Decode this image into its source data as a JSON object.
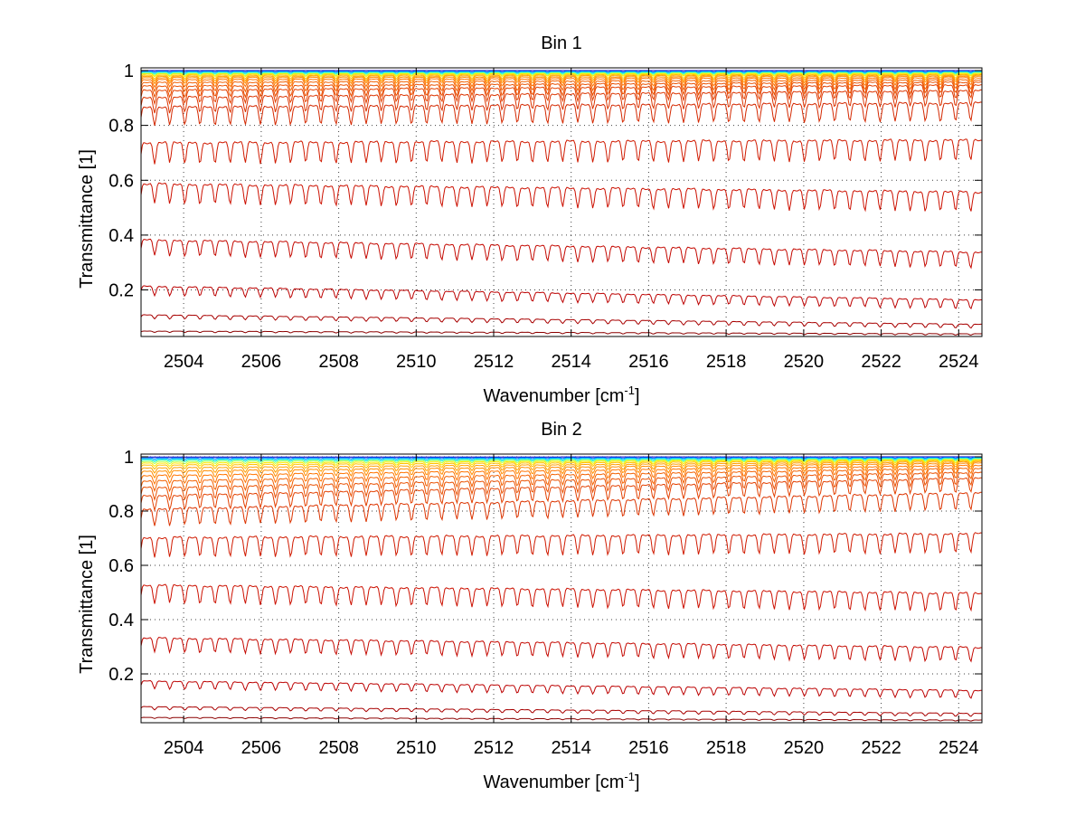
{
  "chart_data": [
    {
      "type": "line",
      "title": "Bin 1",
      "xlabel": "Wavenumber [cm",
      "xlabel_sup": "-1",
      "xlabel_end": "]",
      "ylabel": "Transmittance [1]",
      "xlim": [
        2502.9,
        2524.6
      ],
      "ylim": [
        0.03,
        1.01
      ],
      "xticks": [
        2504,
        2506,
        2508,
        2510,
        2512,
        2514,
        2516,
        2518,
        2520,
        2522,
        2524
      ],
      "yticks": [
        0.2,
        0.4,
        0.6,
        0.8,
        1
      ],
      "ytick_labels": [
        "0.2",
        "0.4",
        "0.6",
        "0.8",
        "1"
      ],
      "grid": true,
      "line_spacing_cm1": 0.39,
      "series": [
        {
          "baseline": [
            1.0,
            1.0
          ],
          "depth": 0.0,
          "color": "#0000c8"
        },
        {
          "baseline": [
            0.998,
            0.998
          ],
          "depth": 0.003,
          "color": "#0072ff"
        },
        {
          "baseline": [
            0.995,
            0.996
          ],
          "depth": 0.005,
          "color": "#00c8ff"
        },
        {
          "baseline": [
            0.993,
            0.994
          ],
          "depth": 0.006,
          "color": "#3cffc4"
        },
        {
          "baseline": [
            0.99,
            0.992
          ],
          "depth": 0.008,
          "color": "#b4ff4c"
        },
        {
          "baseline": [
            0.988,
            0.99
          ],
          "depth": 0.01,
          "color": "#ffea00"
        },
        {
          "baseline": [
            0.984,
            0.987
          ],
          "depth": 0.014,
          "color": "#ffc000"
        },
        {
          "baseline": [
            0.98,
            0.984
          ],
          "depth": 0.018,
          "color": "#ffa000"
        },
        {
          "baseline": [
            0.975,
            0.98
          ],
          "depth": 0.022,
          "color": "#ff8c00"
        },
        {
          "baseline": [
            0.968,
            0.975
          ],
          "depth": 0.028,
          "color": "#ff7400"
        },
        {
          "baseline": [
            0.958,
            0.968
          ],
          "depth": 0.035,
          "color": "#f26000"
        },
        {
          "baseline": [
            0.945,
            0.96
          ],
          "depth": 0.042,
          "color": "#ea5000"
        },
        {
          "baseline": [
            0.93,
            0.95
          ],
          "depth": 0.05,
          "color": "#e34000"
        },
        {
          "baseline": [
            0.905,
            0.93
          ],
          "depth": 0.06,
          "color": "#dc3400"
        },
        {
          "baseline": [
            0.87,
            0.885
          ],
          "depth": 0.07,
          "color": "#d42800"
        },
        {
          "baseline": [
            0.74,
            0.75
          ],
          "depth": 0.08,
          "color": "#d01a00"
        },
        {
          "baseline": [
            0.59,
            0.56
          ],
          "depth": 0.075,
          "color": "#cc1000"
        },
        {
          "baseline": [
            0.385,
            0.34
          ],
          "depth": 0.06,
          "color": "#c40800"
        },
        {
          "baseline": [
            0.215,
            0.165
          ],
          "depth": 0.035,
          "color": "#bc0000"
        },
        {
          "baseline": [
            0.11,
            0.075
          ],
          "depth": 0.015,
          "color": "#a80000"
        },
        {
          "baseline": [
            0.05,
            0.04
          ],
          "depth": 0.005,
          "color": "#8c0000"
        }
      ]
    },
    {
      "type": "line",
      "title": "Bin 2",
      "xlabel": "Wavenumber [cm",
      "xlabel_sup": "-1",
      "xlabel_end": "]",
      "ylabel": "Transmittance [1]",
      "xlim": [
        2502.9,
        2524.6
      ],
      "ylim": [
        0.02,
        1.01
      ],
      "xticks": [
        2504,
        2506,
        2508,
        2510,
        2512,
        2514,
        2516,
        2518,
        2520,
        2522,
        2524
      ],
      "yticks": [
        0.2,
        0.4,
        0.6,
        0.8,
        1
      ],
      "ytick_labels": [
        "0.2",
        "0.4",
        "0.6",
        "0.8",
        "1"
      ],
      "grid": true,
      "line_spacing_cm1": 0.39,
      "series": [
        {
          "baseline": [
            0.999,
            1.0
          ],
          "depth": 0.0,
          "color": "#0000c8"
        },
        {
          "baseline": [
            0.996,
            0.998
          ],
          "depth": 0.003,
          "color": "#0072ff"
        },
        {
          "baseline": [
            0.992,
            0.996
          ],
          "depth": 0.005,
          "color": "#00c8ff"
        },
        {
          "baseline": [
            0.988,
            0.994
          ],
          "depth": 0.007,
          "color": "#3cffc4"
        },
        {
          "baseline": [
            0.983,
            0.992
          ],
          "depth": 0.009,
          "color": "#b4ff4c"
        },
        {
          "baseline": [
            0.977,
            0.99
          ],
          "depth": 0.012,
          "color": "#ffea00"
        },
        {
          "baseline": [
            0.97,
            0.987
          ],
          "depth": 0.015,
          "color": "#ffc000"
        },
        {
          "baseline": [
            0.96,
            0.983
          ],
          "depth": 0.02,
          "color": "#ffa000"
        },
        {
          "baseline": [
            0.948,
            0.978
          ],
          "depth": 0.025,
          "color": "#ff8c00"
        },
        {
          "baseline": [
            0.932,
            0.97
          ],
          "depth": 0.032,
          "color": "#ff7400"
        },
        {
          "baseline": [
            0.912,
            0.96
          ],
          "depth": 0.04,
          "color": "#f26000"
        },
        {
          "baseline": [
            0.888,
            0.945
          ],
          "depth": 0.048,
          "color": "#ea5000"
        },
        {
          "baseline": [
            0.858,
            0.925
          ],
          "depth": 0.055,
          "color": "#e34000"
        },
        {
          "baseline": [
            0.81,
            0.87
          ],
          "depth": 0.065,
          "color": "#dc3400"
        },
        {
          "baseline": [
            0.705,
            0.72
          ],
          "depth": 0.075,
          "color": "#d01a00"
        },
        {
          "baseline": [
            0.53,
            0.5
          ],
          "depth": 0.07,
          "color": "#cc1000"
        },
        {
          "baseline": [
            0.335,
            0.3
          ],
          "depth": 0.055,
          "color": "#c40800"
        },
        {
          "baseline": [
            0.175,
            0.14
          ],
          "depth": 0.03,
          "color": "#bc0000"
        },
        {
          "baseline": [
            0.08,
            0.055
          ],
          "depth": 0.012,
          "color": "#a80000"
        },
        {
          "baseline": [
            0.04,
            0.03
          ],
          "depth": 0.004,
          "color": "#8c0000"
        }
      ]
    }
  ]
}
